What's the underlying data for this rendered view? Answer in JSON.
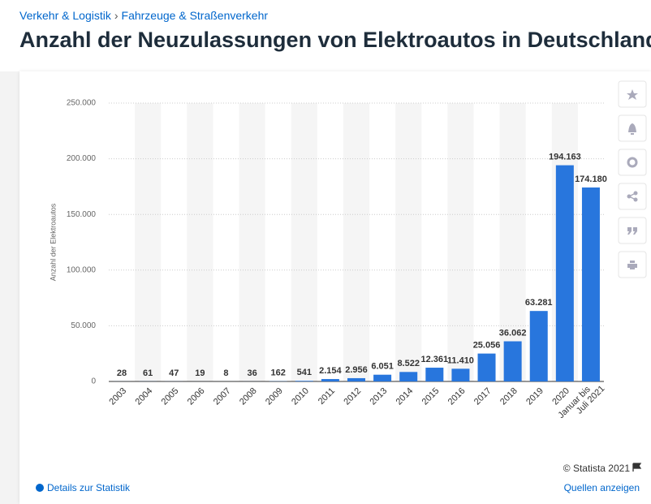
{
  "breadcrumb": [
    "Verkehr & Logistik",
    "Fahrzeuge & Straßenverkehr"
  ],
  "page_title": "Anzahl der Neuzulassungen von Elektroautos in Deutschland",
  "chart_data": {
    "type": "bar",
    "ylabel": "Anzahl der Elektroautos",
    "categories": [
      "2003",
      "2004",
      "2005",
      "2006",
      "2007",
      "2008",
      "2009",
      "2010",
      "2011",
      "2012",
      "2013",
      "2014",
      "2015",
      "2016",
      "2017",
      "2018",
      "2019",
      "2020",
      "Januar bis Juli 2021"
    ],
    "values": [
      28,
      61,
      47,
      19,
      8,
      36,
      162,
      541,
      2154,
      2956,
      6051,
      8522,
      12361,
      11410,
      25056,
      36062,
      63281,
      194163,
      174180
    ],
    "value_labels": [
      "28",
      "61",
      "47",
      "19",
      "8",
      "36",
      "162",
      "541",
      "2.154",
      "2.956",
      "6.051",
      "8.522",
      "12.361",
      "11.410",
      "25.056",
      "36.062",
      "63.281",
      "194.163",
      "174.180"
    ],
    "color": "#2876dd",
    "ylim": [
      0,
      250000
    ],
    "yticks": [
      0,
      {
        "value": 50000,
        "label": "50.000"
      },
      {
        "value": 100000,
        "label": "100.000"
      },
      {
        "value": 150000,
        "label": "150.000"
      },
      {
        "value": 200000,
        "label": "200.000"
      },
      {
        "value": 250000,
        "label": "250.000"
      }
    ],
    "grid": true
  },
  "copyright": "© Statista 2021",
  "footer": {
    "details": "Details zur Statistik",
    "sources": "Quellen anzeigen"
  }
}
